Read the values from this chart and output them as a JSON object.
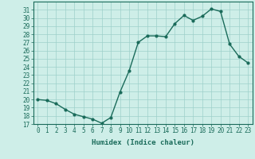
{
  "x": [
    0,
    1,
    2,
    3,
    4,
    5,
    6,
    7,
    8,
    9,
    10,
    11,
    12,
    13,
    14,
    15,
    16,
    17,
    18,
    19,
    20,
    21,
    22,
    23
  ],
  "y": [
    20,
    19.9,
    19.5,
    18.8,
    18.2,
    17.9,
    17.6,
    17.1,
    17.8,
    20.9,
    23.5,
    27.0,
    27.8,
    27.8,
    27.7,
    29.3,
    30.3,
    29.7,
    30.2,
    31.1,
    30.8,
    26.8,
    25.3,
    24.5
  ],
  "line_color": "#1a6b5a",
  "marker": "o",
  "markersize": 2.0,
  "linewidth": 1.0,
  "bg_color": "#ceeee8",
  "grid_color": "#9ed0ca",
  "xlabel": "Humidex (Indice chaleur)",
  "ylabel": "",
  "xlim": [
    -0.5,
    23.5
  ],
  "ylim": [
    17,
    32
  ],
  "yticks": [
    17,
    18,
    19,
    20,
    21,
    22,
    23,
    24,
    25,
    26,
    27,
    28,
    29,
    30,
    31
  ],
  "xticks": [
    0,
    1,
    2,
    3,
    4,
    5,
    6,
    7,
    8,
    9,
    10,
    11,
    12,
    13,
    14,
    15,
    16,
    17,
    18,
    19,
    20,
    21,
    22,
    23
  ],
  "tick_fontsize": 5.5,
  "label_fontsize": 6.5
}
